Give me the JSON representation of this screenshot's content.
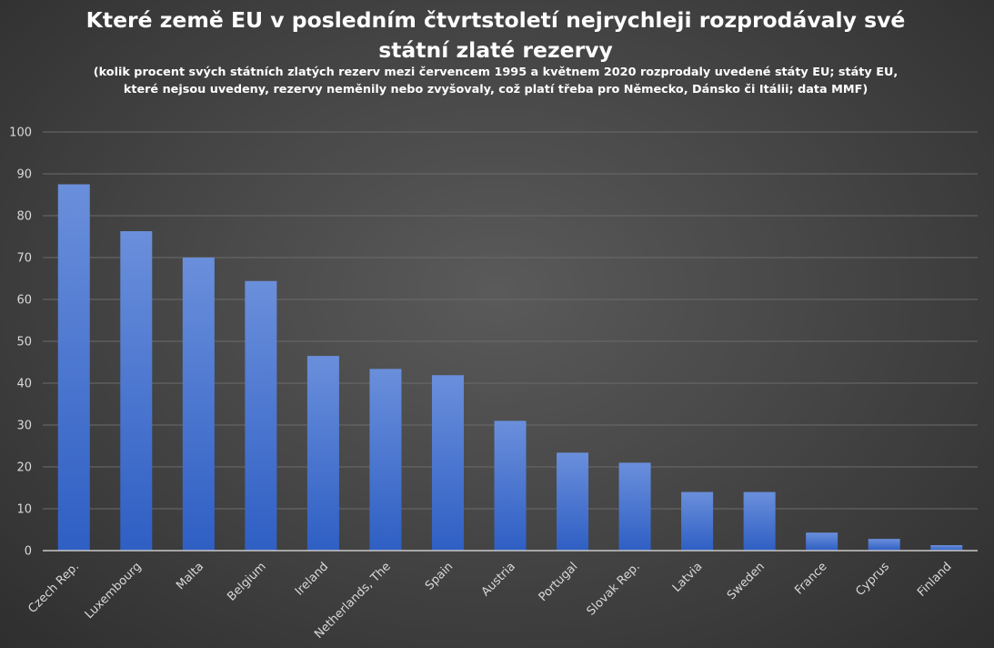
{
  "colors": {
    "bar_top": "#6a8fdb",
    "bar_bottom": "#2f5fc4",
    "background": "#474747"
  },
  "chart_data": {
    "type": "bar",
    "title": "Které země EU v posledním čtvrtstoletí nejrychleji rozprodávaly své státní zlaté rezervy",
    "subtitle": "(kolik procent svých státních zlatých rezerv mezi červencem 1995 a květnem 2020 rozprodaly uvedené státy EU; státy EU, které nejsou uvedeny, rezervy neměnily nebo zvyšovaly, což platí třeba pro Německo, Dánsko či Itálii; data MMF)",
    "categories": [
      "Czech Rep.",
      "Luxembourg",
      "Malta",
      "Belgium",
      "Ireland",
      "Netherlands, The",
      "Spain",
      "Austria",
      "Portugal",
      "Slovak Rep.",
      "Latvia",
      "Sweden",
      "France",
      "Cyprus",
      "Finland"
    ],
    "values": [
      87.5,
      76.3,
      70.0,
      64.4,
      46.5,
      43.4,
      41.9,
      31.0,
      23.4,
      21.0,
      14.0,
      14.0,
      4.3,
      2.8,
      1.3
    ],
    "xlabel": "",
    "ylabel": "",
    "ylim": [
      0,
      100
    ],
    "yticks": [
      0,
      10,
      20,
      30,
      40,
      50,
      60,
      70,
      80,
      90,
      100
    ],
    "grid": true,
    "legend": "none"
  }
}
